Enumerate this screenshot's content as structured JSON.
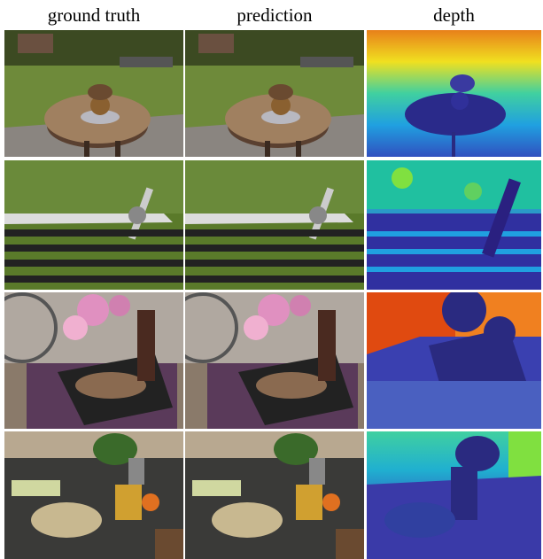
{
  "headers": {
    "col1": "ground truth",
    "col2": "prediction",
    "col3": "depth"
  },
  "rows": [
    {
      "scene": "garden-table-with-vase"
    },
    {
      "scene": "bicycle-on-bench"
    },
    {
      "scene": "bonsai-tree"
    },
    {
      "scene": "kitchen-counter"
    }
  ],
  "colors": {
    "depth_far": "#f0f020",
    "depth_mid": "#22c8b0",
    "depth_near": "#2a2a8a"
  }
}
